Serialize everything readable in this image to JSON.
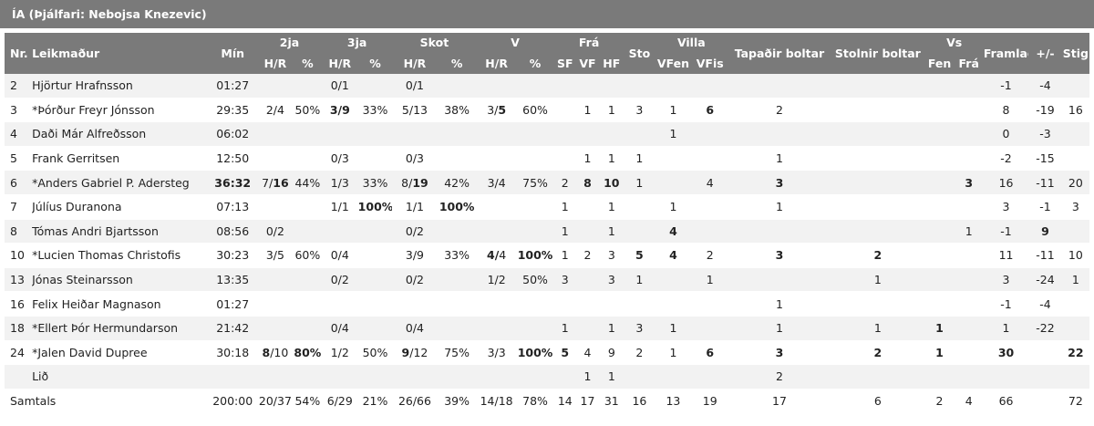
{
  "title": "ÍA (Þjálfari: Nebojsa Knezevic)",
  "headers": {
    "nr": "Nr.",
    "player": "Leikmaður",
    "min": "Mín",
    "two": "2ja",
    "three": "3ja",
    "shots": "Skot",
    "v": "V",
    "fra": "Frá",
    "sto": "Sto",
    "villa": "Villa",
    "tapadir": "Tapaðir boltar",
    "stolnir": "Stolnir boltar",
    "vs": "Vs",
    "framlag": "Framlag",
    "pm": "+/-",
    "stig": "Stig",
    "hr": "H/R",
    "pct": "%",
    "sf": "SF",
    "vf": "VF",
    "hf": "HF",
    "vfen": "VFen",
    "vfis": "VFis",
    "fen": "Fen",
    "fra2": "Frá"
  },
  "rows": [
    {
      "nr": "2",
      "name": "Hjörtur Hrafnsson",
      "min": "01:27",
      "t2a": "",
      "t2b": "",
      "t2p": "",
      "t3a": "0/1",
      "t3b": "",
      "t3p": "",
      "sa": "0/1",
      "sb": "",
      "sp": "",
      "va": "",
      "vb": "",
      "vp": "",
      "sf": "",
      "vf": "",
      "hf": "",
      "sto": "",
      "vfen": "",
      "vfis": "",
      "tap": "",
      "stol": "",
      "fen": "",
      "fra": "",
      "fram": "-1",
      "pm": "-4",
      "stig": ""
    },
    {
      "nr": "3",
      "name": "*Þórður Freyr Jónsson",
      "min": "29:35",
      "t2a": "2/4",
      "t2b": "",
      "t2p": "50%",
      "t3a": "3/9",
      "t3b": "",
      "t3p": "33%",
      "sa": "5/13",
      "sb": "",
      "sp": "38%",
      "va": "3/",
      "vb": "5",
      "vp": "60%",
      "sf": "",
      "vf": "1",
      "hf": "1",
      "sto": "3",
      "vfen": "1",
      "vfis": "6",
      "tap": "2",
      "stol": "",
      "fen": "",
      "fra": "",
      "fram": "8",
      "pm": "-19",
      "stig": "16"
    },
    {
      "nr": "4",
      "name": "Daði Már Alfreðsson",
      "min": "06:02",
      "t2a": "",
      "t2b": "",
      "t2p": "",
      "t3a": "",
      "t3b": "",
      "t3p": "",
      "sa": "",
      "sb": "",
      "sp": "",
      "va": "",
      "vb": "",
      "vp": "",
      "sf": "",
      "vf": "",
      "hf": "",
      "sto": "",
      "vfen": "1",
      "vfis": "",
      "tap": "",
      "stol": "",
      "fen": "",
      "fra": "",
      "fram": "0",
      "pm": "-3",
      "stig": ""
    },
    {
      "nr": "5",
      "name": "Frank Gerritsen",
      "min": "12:50",
      "t2a": "",
      "t2b": "",
      "t2p": "",
      "t3a": "0/3",
      "t3b": "",
      "t3p": "",
      "sa": "0/3",
      "sb": "",
      "sp": "",
      "va": "",
      "vb": "",
      "vp": "",
      "sf": "",
      "vf": "1",
      "hf": "1",
      "sto": "1",
      "vfen": "",
      "vfis": "",
      "tap": "1",
      "stol": "",
      "fen": "",
      "fra": "",
      "fram": "-2",
      "pm": "-15",
      "stig": ""
    },
    {
      "nr": "6",
      "name": "*Anders Gabriel P. Adersteg",
      "min": "36:32",
      "t2a": "7/",
      "t2b": "16",
      "t2p": "44%",
      "t3a": "1/3",
      "t3b": "",
      "t3p": "33%",
      "sa": "8/",
      "sb": "19",
      "sp": "42%",
      "va": "3/4",
      "vb": "",
      "vp": "75%",
      "sf": "2",
      "vf": "8",
      "hf": "10",
      "sto": "1",
      "vfen": "",
      "vfis": "4",
      "tap": "3",
      "stol": "",
      "fen": "",
      "fra": "3",
      "fram": "16",
      "pm": "-11",
      "stig": "20"
    },
    {
      "nr": "7",
      "name": "Júlíus Duranona",
      "min": "07:13",
      "t2a": "",
      "t2b": "",
      "t2p": "",
      "t3a": "1/1",
      "t3b": "",
      "t3p": "100%",
      "sa": "1/1",
      "sb": "",
      "sp": "100%",
      "va": "",
      "vb": "",
      "vp": "",
      "sf": "1",
      "vf": "",
      "hf": "1",
      "sto": "",
      "vfen": "1",
      "vfis": "",
      "tap": "1",
      "stol": "",
      "fen": "",
      "fra": "",
      "fram": "3",
      "pm": "-1",
      "stig": "3"
    },
    {
      "nr": "8",
      "name": "Tómas Andri Bjartsson",
      "min": "08:56",
      "t2a": "0/2",
      "t2b": "",
      "t2p": "",
      "t3a": "",
      "t3b": "",
      "t3p": "",
      "sa": "0/2",
      "sb": "",
      "sp": "",
      "va": "",
      "vb": "",
      "vp": "",
      "sf": "1",
      "vf": "",
      "hf": "1",
      "sto": "",
      "vfen": "4",
      "vfis": "",
      "tap": "",
      "stol": "",
      "fen": "",
      "fra": "1",
      "fram": "-1",
      "pm": "9",
      "stig": ""
    },
    {
      "nr": "10",
      "name": "*Lucien Thomas Christofis",
      "min": "30:23",
      "t2a": "3/5",
      "t2b": "",
      "t2p": "60%",
      "t3a": "0/4",
      "t3b": "",
      "t3p": "",
      "sa": "3/9",
      "sb": "",
      "sp": "33%",
      "va": "4/",
      "vb": "4",
      "vp": "100%",
      "sf": "1",
      "vf": "2",
      "hf": "3",
      "sto": "5",
      "vfen": "4",
      "vfis": "2",
      "tap": "3",
      "stol": "2",
      "fen": "",
      "fra": "",
      "fram": "11",
      "pm": "-11",
      "stig": "10"
    },
    {
      "nr": "13",
      "name": "Jónas Steinarsson",
      "min": "13:35",
      "t2a": "",
      "t2b": "",
      "t2p": "",
      "t3a": "0/2",
      "t3b": "",
      "t3p": "",
      "sa": "0/2",
      "sb": "",
      "sp": "",
      "va": "1/2",
      "vb": "",
      "vp": "50%",
      "sf": "3",
      "vf": "",
      "hf": "3",
      "sto": "1",
      "vfen": "",
      "vfis": "1",
      "tap": "",
      "stol": "1",
      "fen": "",
      "fra": "",
      "fram": "3",
      "pm": "-24",
      "stig": "1"
    },
    {
      "nr": "16",
      "name": "Felix Heiðar Magnason",
      "min": "01:27",
      "t2a": "",
      "t2b": "",
      "t2p": "",
      "t3a": "",
      "t3b": "",
      "t3p": "",
      "sa": "",
      "sb": "",
      "sp": "",
      "va": "",
      "vb": "",
      "vp": "",
      "sf": "",
      "vf": "",
      "hf": "",
      "sto": "",
      "vfen": "",
      "vfis": "",
      "tap": "1",
      "stol": "",
      "fen": "",
      "fra": "",
      "fram": "-1",
      "pm": "-4",
      "stig": ""
    },
    {
      "nr": "18",
      "name": "*Ellert Þór Hermundarson",
      "min": "21:42",
      "t2a": "",
      "t2b": "",
      "t2p": "",
      "t3a": "0/4",
      "t3b": "",
      "t3p": "",
      "sa": "0/4",
      "sb": "",
      "sp": "",
      "va": "",
      "vb": "",
      "vp": "",
      "sf": "1",
      "vf": "",
      "hf": "1",
      "sto": "3",
      "vfen": "1",
      "vfis": "",
      "tap": "1",
      "stol": "1",
      "fen": "1",
      "fra": "",
      "fram": "1",
      "pm": "-22",
      "stig": ""
    },
    {
      "nr": "24",
      "name": "*Jalen David Dupree",
      "min": "30:18",
      "t2a": "8",
      "t2b": "/10",
      "t2p": "80%",
      "t3a": "1/2",
      "t3b": "",
      "t3p": "50%",
      "sa": "9",
      "sb": "/12",
      "sp": "75%",
      "va": "3/3",
      "vb": "",
      "vp": "100%",
      "sf": "5",
      "vf": "4",
      "hf": "9",
      "sto": "2",
      "vfen": "1",
      "vfis": "6",
      "tap": "3",
      "stol": "2",
      "fen": "1",
      "fra": "",
      "fram": "30",
      "pm": "",
      "stig": "22"
    },
    {
      "nr": "",
      "name": "Lið",
      "min": "",
      "t2a": "",
      "t2b": "",
      "t2p": "",
      "t3a": "",
      "t3b": "",
      "t3p": "",
      "sa": "",
      "sb": "",
      "sp": "",
      "va": "",
      "vb": "",
      "vp": "",
      "sf": "",
      "vf": "1",
      "hf": "1",
      "sto": "",
      "vfen": "",
      "vfis": "",
      "tap": "2",
      "stol": "",
      "fen": "",
      "fra": "",
      "fram": "",
      "pm": "",
      "stig": ""
    }
  ],
  "total": {
    "nr": "Samtals",
    "min": "200:00",
    "t2": "20/37",
    "t2p": "54%",
    "t3": "6/29",
    "t3p": "21%",
    "s": "26/66",
    "sp": "39%",
    "v": "14/18",
    "vp": "78%",
    "sf": "14",
    "vf": "17",
    "hf": "31",
    "sto": "16",
    "vfen": "13",
    "vfis": "19",
    "tap": "17",
    "stol": "6",
    "fen": "2",
    "fra": "4",
    "fram": "66",
    "stig": "72"
  }
}
